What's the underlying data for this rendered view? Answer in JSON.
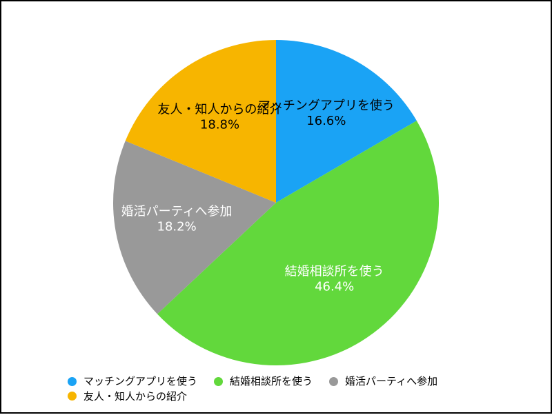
{
  "chart_data": {
    "type": "pie",
    "categories": [
      "マッチングアプリを使う",
      "結婚相談所を使う",
      "婚活パーティへ参加",
      "友人・知人からの紹介"
    ],
    "values": [
      16.6,
      46.4,
      18.2,
      18.8
    ],
    "value_labels": [
      "16.6%",
      "46.4%",
      "18.2%",
      "18.8%"
    ],
    "colors": [
      "#1aa3f5",
      "#62d83c",
      "#999999",
      "#f7b500"
    ],
    "label_colors": [
      "#000000",
      "#ffffff",
      "#ffffff",
      "#000000"
    ],
    "start": "top",
    "direction": "clockwise",
    "legend": "bottom",
    "title": ""
  }
}
